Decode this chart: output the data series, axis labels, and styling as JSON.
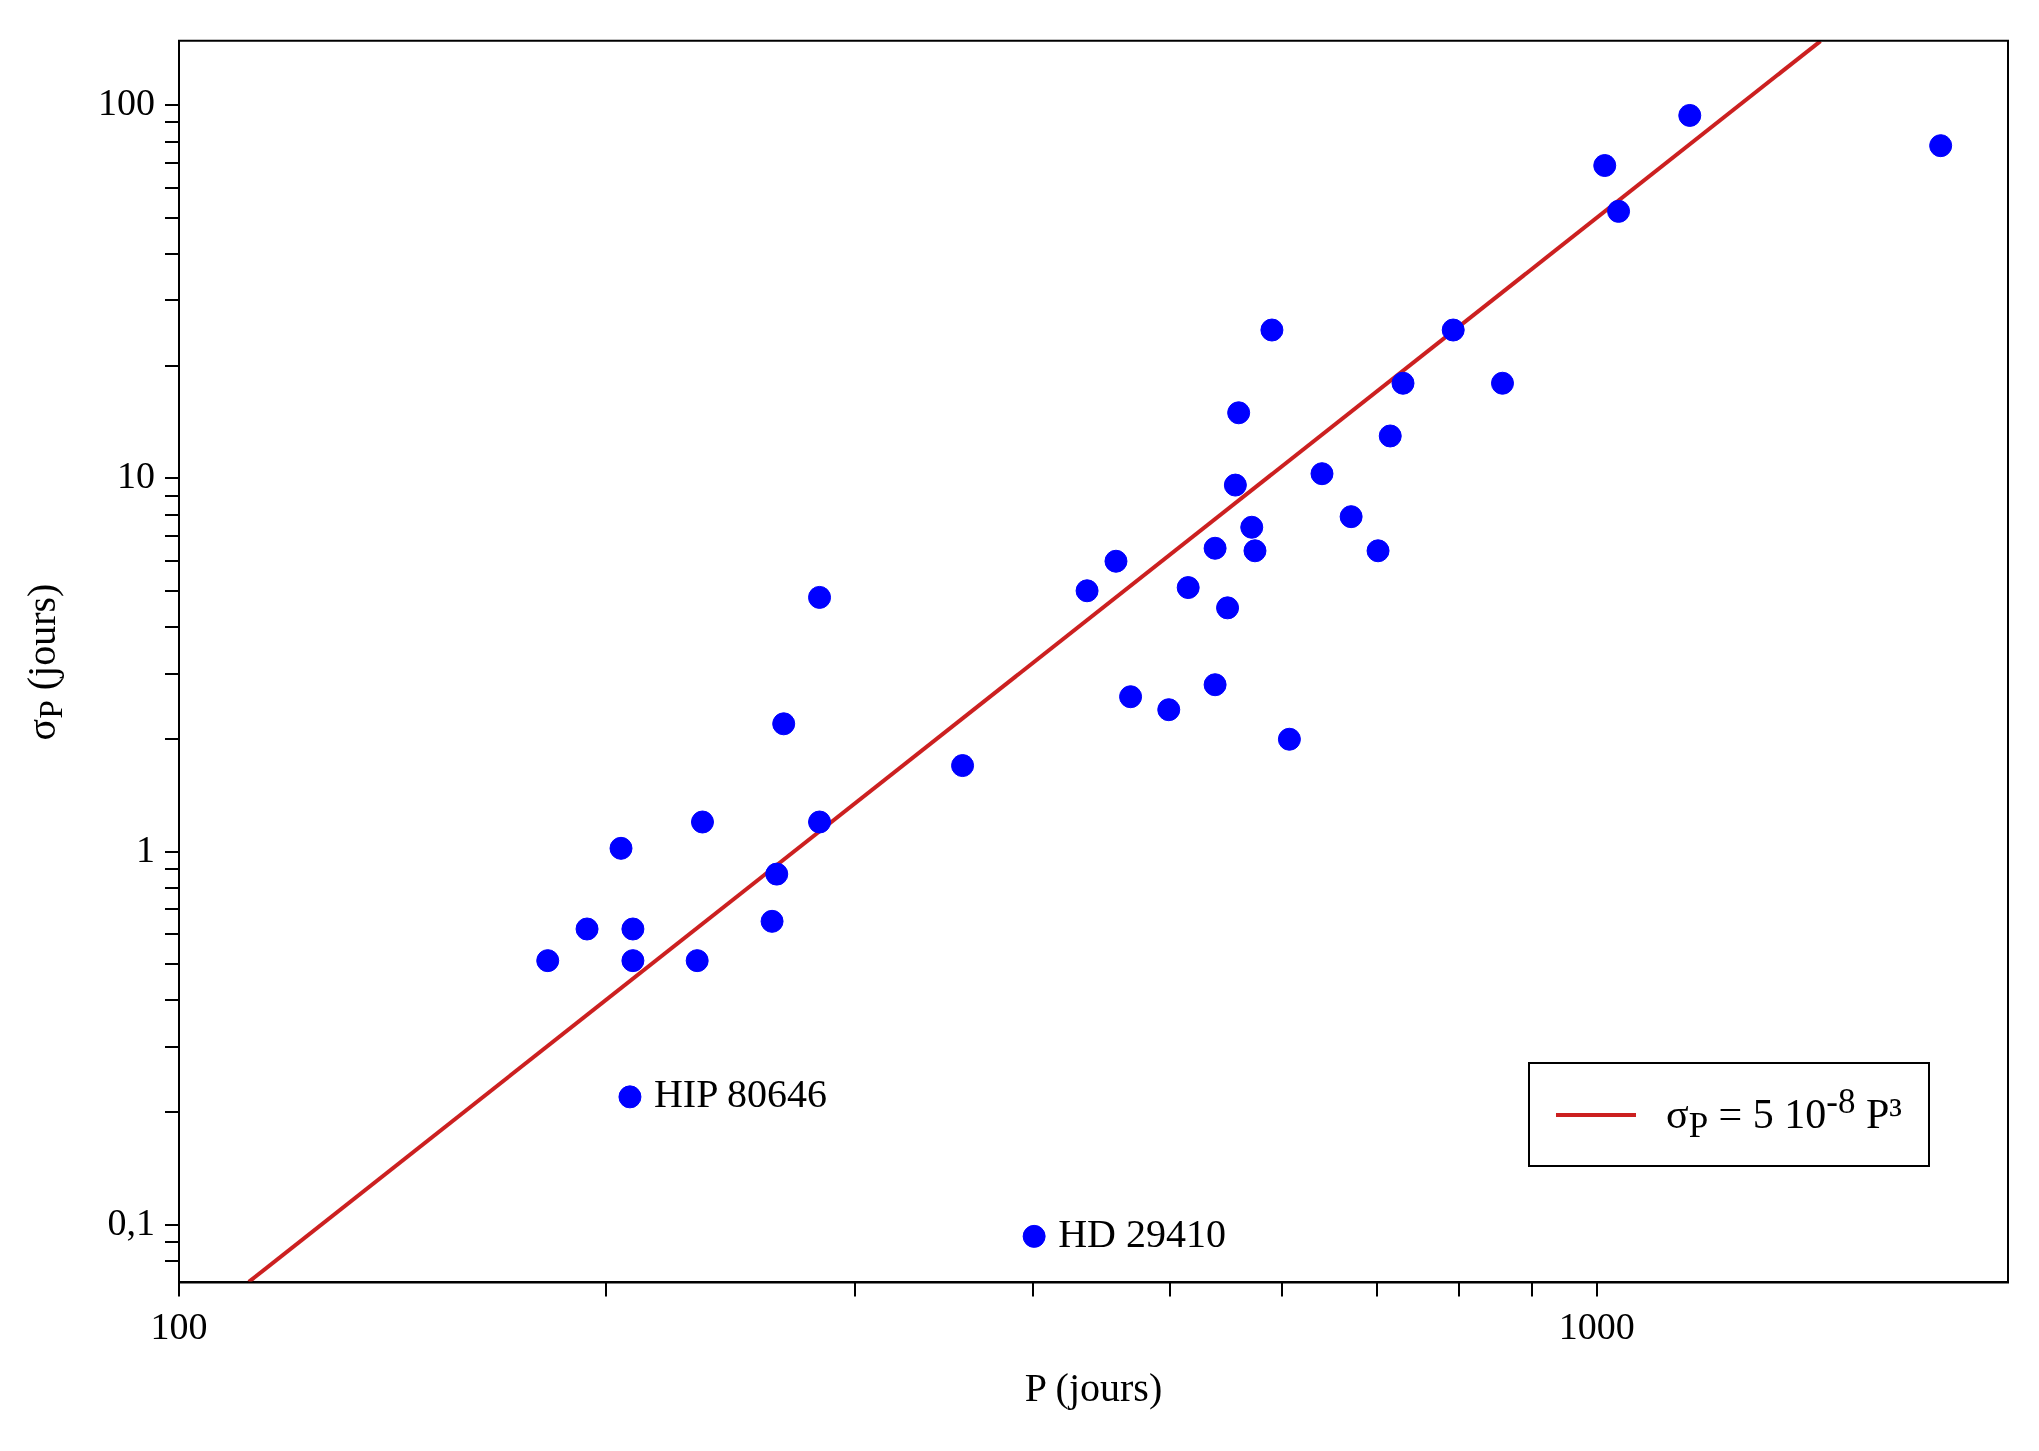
{
  "chart_data": {
    "type": "scatter",
    "xlabel": "P (jours)",
    "ylabel": "σ$_{P}$ (jours)",
    "log": "xy",
    "marker": "circle",
    "grid": false,
    "legend": "bottom right",
    "xlim": [
      100,
      1950
    ],
    "ylim": [
      0.07,
      149
    ],
    "xticks": [
      100,
      {
        "value": 200,
        "label": null
      },
      {
        "value": 300,
        "label": null
      },
      {
        "value": 400,
        "label": null
      },
      {
        "value": 500,
        "label": null
      },
      {
        "value": 600,
        "label": null
      },
      {
        "value": 700,
        "label": null
      },
      {
        "value": 800,
        "label": null
      },
      {
        "value": 900,
        "label": null
      },
      1000
    ],
    "yticks": [
      {
        "value": 0.08,
        "label": null
      },
      {
        "value": 0.09,
        "label": null
      },
      {
        "value": 0.1,
        "label": "0,1"
      },
      {
        "value": 0.2,
        "label": null
      },
      {
        "value": 0.3,
        "label": null
      },
      {
        "value": 0.4,
        "label": null
      },
      {
        "value": 0.5,
        "label": null
      },
      {
        "value": 0.6,
        "label": null
      },
      {
        "value": 0.7,
        "label": null
      },
      {
        "value": 0.8,
        "label": null
      },
      {
        "value": 0.9,
        "label": null
      },
      1,
      {
        "value": 2,
        "label": null
      },
      {
        "value": 3,
        "label": null
      },
      {
        "value": 4,
        "label": null
      },
      {
        "value": 5,
        "label": null
      },
      {
        "value": 6,
        "label": null
      },
      {
        "value": 7,
        "label": null
      },
      {
        "value": 8,
        "label": null
      },
      {
        "value": 9,
        "label": null
      },
      10,
      {
        "value": 20,
        "label": null
      },
      {
        "value": 30,
        "label": null
      },
      {
        "value": 40,
        "label": null
      },
      {
        "value": 50,
        "label": null
      },
      {
        "value": 60,
        "label": null
      },
      {
        "value": 70,
        "label": null
      },
      {
        "value": 80,
        "label": null
      },
      {
        "value": 90,
        "label": null
      },
      100
    ],
    "series": [
      {
        "color": "#0000ff",
        "x": [
          182,
          194,
          205,
          209,
          209,
          232,
          234,
          262,
          264,
          267,
          283,
          283,
          357,
          401,
          208,
          437,
          458,
          469,
          499,
          515,
          538,
          538,
          549,
          556,
          559,
          571,
          574,
          590,
          607,
          640,
          671,
          701,
          715,
          730,
          792,
          858,
          1013,
          1036,
          1163,
          1748
        ],
        "values": [
          0.51,
          0.62,
          1.02,
          0.62,
          0.51,
          0.51,
          1.2,
          0.65,
          0.87,
          2.2,
          4.8,
          1.2,
          1.7,
          0.093,
          0.22,
          5.0,
          6.0,
          2.6,
          2.4,
          5.1,
          6.5,
          2.8,
          4.5,
          9.6,
          15,
          7.4,
          6.4,
          25,
          2.0,
          10.3,
          7.9,
          6.4,
          13,
          18,
          25,
          18,
          69,
          52,
          94,
          78
        ]
      },
      {
        "type": "line",
        "name": "σ$_{P}$ = 5 10$^{-8}$  P³",
        "color": "#cc2020",
        "marker": "none",
        "x": [
          112,
          1438
        ],
        "values": [
          0.0702,
          148.7
        ]
      }
    ],
    "annotations": [
      {
        "text": "HIP 80646",
        "x": 208,
        "y": 0.22
      },
      {
        "text": "HD 29410",
        "x": 401,
        "y": 0.093
      }
    ]
  }
}
